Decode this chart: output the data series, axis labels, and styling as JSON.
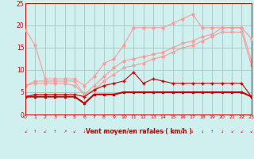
{
  "xlabel": "Vent moyen/en rafales ( km/h )",
  "background_color": "#cff0ee",
  "grid_color": "#aaccc8",
  "x": [
    0,
    1,
    2,
    3,
    4,
    5,
    6,
    7,
    8,
    9,
    10,
    11,
    12,
    13,
    14,
    15,
    16,
    17,
    18,
    19,
    20,
    21,
    22,
    23
  ],
  "ylim": [
    0,
    25
  ],
  "xlim": [
    0,
    23
  ],
  "yticks": [
    0,
    5,
    10,
    15,
    20,
    25
  ],
  "line1": [
    4.0,
    4.0,
    4.0,
    4.0,
    4.0,
    4.0,
    2.5,
    4.5,
    4.5,
    4.5,
    5.0,
    5.0,
    5.0,
    5.0,
    5.0,
    5.0,
    5.0,
    5.0,
    5.0,
    5.0,
    5.0,
    5.0,
    5.0,
    4.0
  ],
  "line2": [
    4.0,
    4.5,
    4.5,
    4.5,
    4.5,
    4.5,
    4.0,
    5.5,
    6.5,
    7.0,
    7.5,
    9.5,
    7.0,
    8.0,
    7.5,
    7.0,
    7.0,
    7.0,
    7.0,
    7.0,
    7.0,
    7.0,
    7.0,
    4.0
  ],
  "line3": [
    19.0,
    15.5,
    8.0,
    8.0,
    8.0,
    8.0,
    6.5,
    8.5,
    11.5,
    12.5,
    15.5,
    19.5,
    19.5,
    19.5,
    19.5,
    20.5,
    21.5,
    22.5,
    19.5,
    19.5,
    19.5,
    19.5,
    19.5,
    17.0
  ],
  "line4": [
    6.5,
    7.5,
    7.5,
    7.5,
    7.5,
    7.5,
    4.5,
    6.5,
    8.5,
    10.5,
    12.0,
    12.5,
    13.0,
    13.5,
    14.0,
    15.0,
    16.0,
    16.5,
    17.5,
    18.0,
    19.5,
    19.5,
    19.5,
    12.0
  ],
  "line5": [
    6.5,
    7.0,
    7.0,
    7.0,
    7.0,
    6.5,
    4.5,
    5.5,
    7.5,
    9.0,
    10.5,
    11.0,
    11.5,
    12.5,
    13.0,
    14.0,
    15.0,
    15.5,
    16.5,
    17.5,
    18.5,
    18.5,
    18.5,
    11.0
  ],
  "color_dark": "#cc0000",
  "color_medium": "#e05050",
  "color_light": "#ff9999",
  "axis_color": "#cc0000",
  "label_color": "#cc0000"
}
